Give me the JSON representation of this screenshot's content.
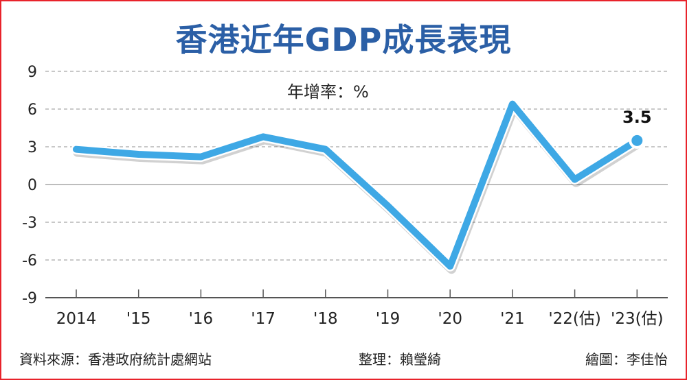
{
  "chart_data": {
    "type": "line",
    "title": "香港近年GDP成長表現",
    "unit_label": "年增率：%",
    "categories": [
      "2014",
      "'15",
      "'16",
      "'17",
      "'18",
      "'19",
      "'20",
      "'21",
      "'22(估)",
      "'23(估)"
    ],
    "values": [
      2.8,
      2.4,
      2.2,
      3.8,
      2.8,
      -1.7,
      -6.5,
      6.4,
      0.4,
      3.5
    ],
    "yticks": [
      9,
      6,
      3,
      0,
      -3,
      -6,
      -9
    ],
    "ylim": [
      -9,
      9
    ],
    "grid": "horizontal-dashed",
    "series_color": "#3ea8e5",
    "annotations": [
      {
        "category": "'23(估)",
        "text": "3.5"
      }
    ]
  },
  "footer": {
    "source": "資料來源：香港政府統計處網站",
    "editor": "整理：賴瑩綺",
    "artist": "繪圖：李佳怡"
  },
  "colors": {
    "title": "#2b5fa6",
    "border": "#e8232b",
    "line": "#3ea8e5"
  }
}
